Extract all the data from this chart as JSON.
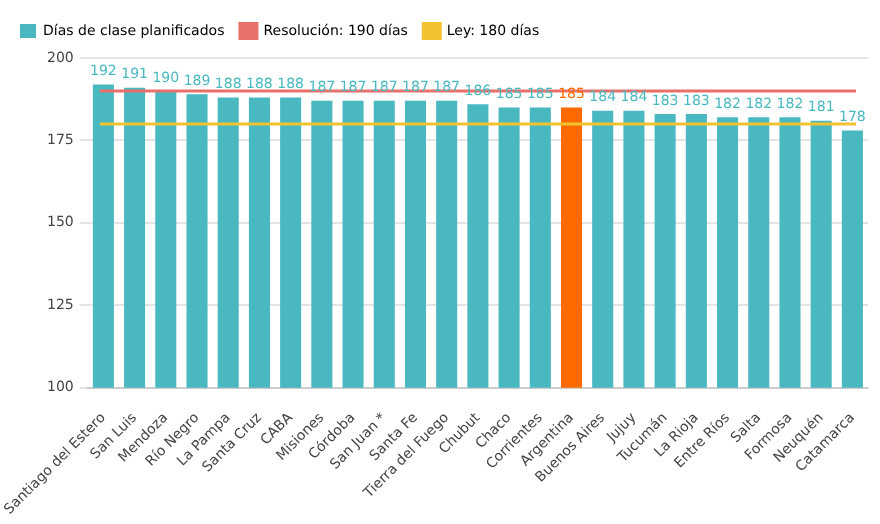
{
  "chart_data": {
    "type": "bar",
    "categories": [
      "Santiago del Estero",
      "San Luis",
      "Mendoza",
      "Río Negro",
      "La Pampa",
      "Santa Cruz",
      "CABA",
      "Misiones",
      "Córdoba",
      "San Juan *",
      "Santa Fe",
      "Tierra del Fuego",
      "Chubut",
      "Chaco",
      "Corrientes",
      "Argentina",
      "Buenos Aires",
      "Jujuy",
      "Tucumán",
      "La Rioja",
      "Entre Ríos",
      "Salta",
      "Formosa",
      "Neuquén",
      "Catamarca"
    ],
    "series": [
      {
        "name": "Días de clase planificados",
        "color": "#4ab8c1",
        "colors": [
          "#4ab8c1",
          "#4ab8c1",
          "#4ab8c1",
          "#4ab8c1",
          "#4ab8c1",
          "#4ab8c1",
          "#4ab8c1",
          "#4ab8c1",
          "#4ab8c1",
          "#4ab8c1",
          "#4ab8c1",
          "#4ab8c1",
          "#4ab8c1",
          "#4ab8c1",
          "#4ab8c1",
          "#ff6a00",
          "#4ab8c1",
          "#4ab8c1",
          "#4ab8c1",
          "#4ab8c1",
          "#4ab8c1",
          "#4ab8c1",
          "#4ab8c1",
          "#4ab8c1",
          "#4ab8c1"
        ],
        "values": [
          192,
          191,
          190,
          189,
          188,
          188,
          188,
          187,
          187,
          187,
          187,
          187,
          186,
          185,
          185,
          185,
          184,
          184,
          183,
          183,
          182,
          182,
          182,
          181,
          178
        ]
      }
    ],
    "ylim": [
      100,
      200
    ],
    "yticks": [
      100,
      125,
      150,
      175,
      200
    ],
    "grid": "y",
    "data_labels": true,
    "legend": "top left",
    "ref_lines": [
      {
        "axis": "y",
        "value": 190,
        "label": "Resolución: 190 días",
        "color": "#e8706a"
      },
      {
        "axis": "y",
        "value": 180,
        "label": "Ley: 180 días",
        "color": "#f2c230"
      }
    ]
  }
}
